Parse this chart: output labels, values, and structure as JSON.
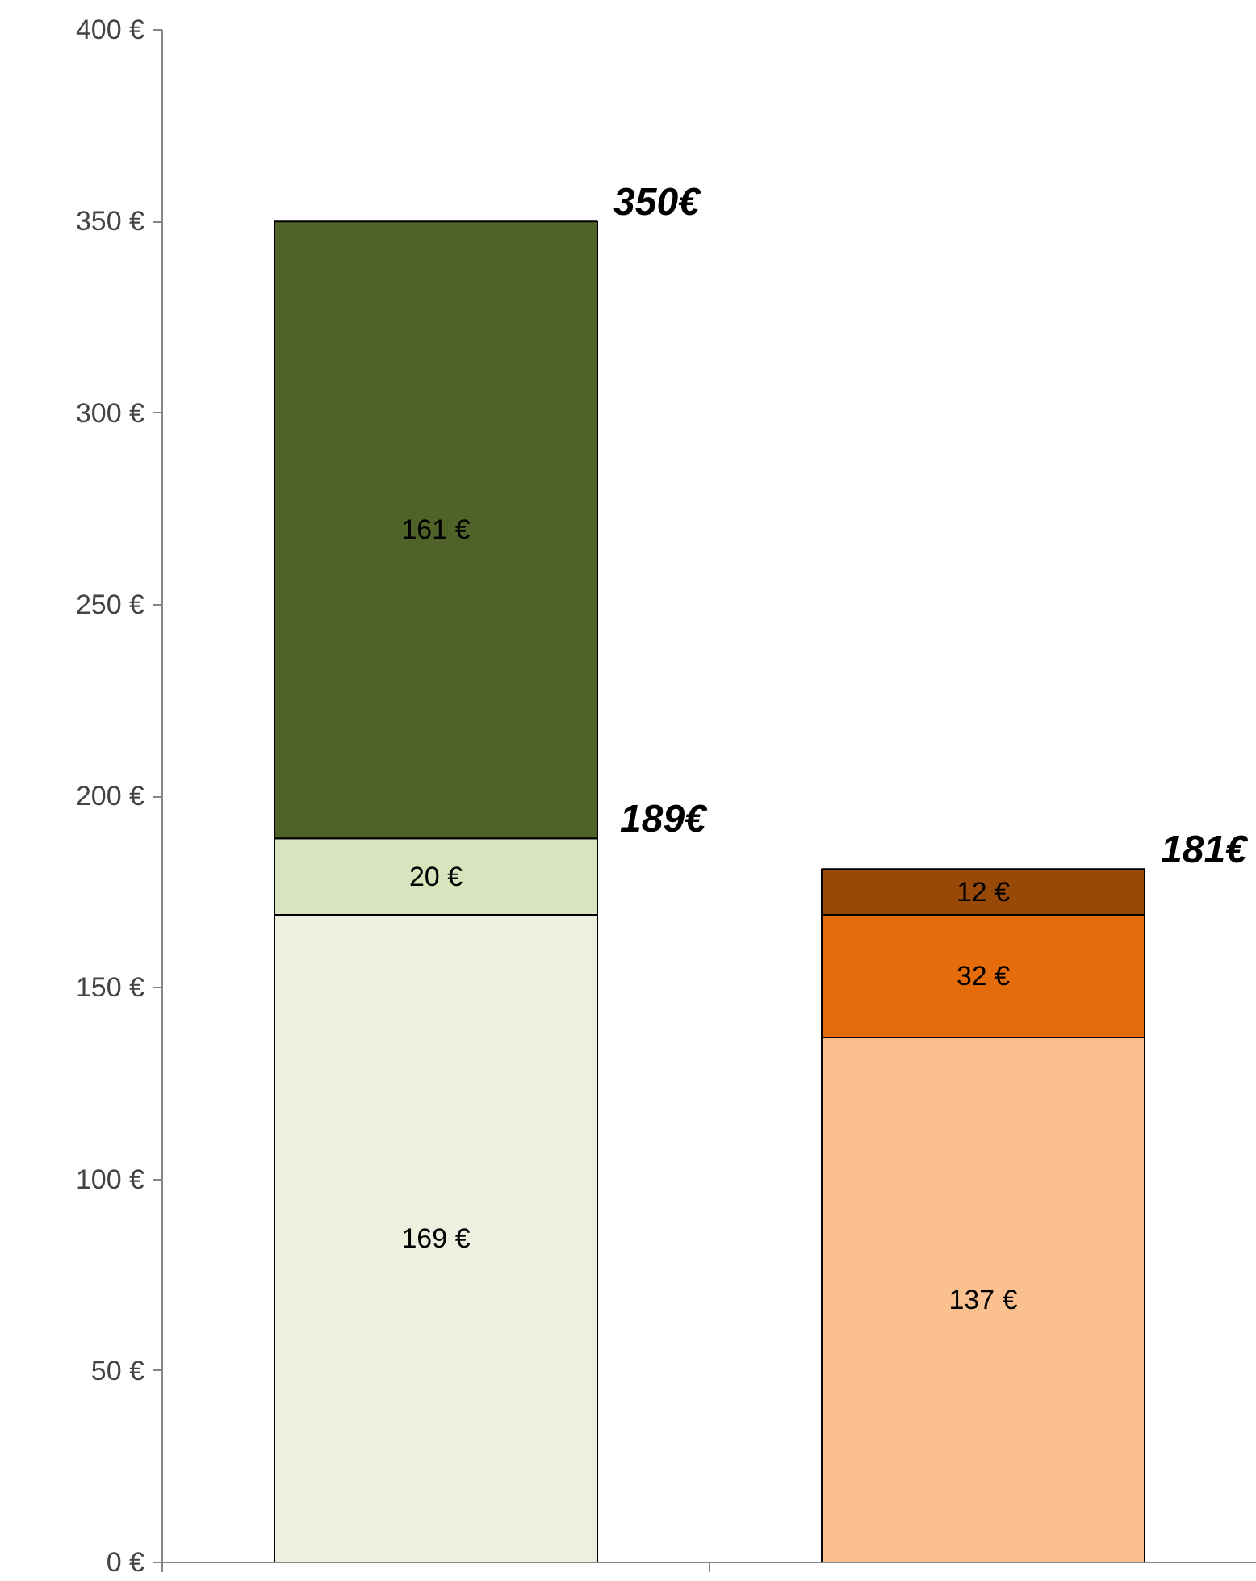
{
  "chart_data": {
    "type": "bar",
    "stacked": true,
    "categories": [
      null,
      null
    ],
    "series": [
      {
        "colors": [
          "#ebf1de",
          "#fac090"
        ],
        "values": [
          169,
          137
        ],
        "value_labels": [
          "169 €",
          "137 €"
        ]
      },
      {
        "colors": [
          "#d7e4bd",
          "#e46c0a"
        ],
        "values": [
          20,
          32
        ],
        "value_labels": [
          "20 €",
          "32 €"
        ]
      },
      {
        "colors": [
          "#4f6228",
          "#984807"
        ],
        "values": [
          161,
          12
        ],
        "value_labels": [
          "161 €",
          "12 €"
        ]
      }
    ],
    "totals": [
      "350€",
      "181€"
    ],
    "annotations": [
      "189€"
    ],
    "ylim": [
      0,
      400
    ],
    "yticks": [
      {
        "value": 0,
        "label": "0 €"
      },
      {
        "value": 50,
        "label": "50 €"
      },
      {
        "value": 100,
        "label": "100 €"
      },
      {
        "value": 150,
        "label": "150 €"
      },
      {
        "value": 200,
        "label": "200 €"
      },
      {
        "value": 250,
        "label": "250 €"
      },
      {
        "value": 300,
        "label": "300 €"
      },
      {
        "value": 350,
        "label": "350 €"
      },
      {
        "value": 400,
        "label": "400 €"
      }
    ],
    "tick_labels": "y",
    "grid": false
  }
}
